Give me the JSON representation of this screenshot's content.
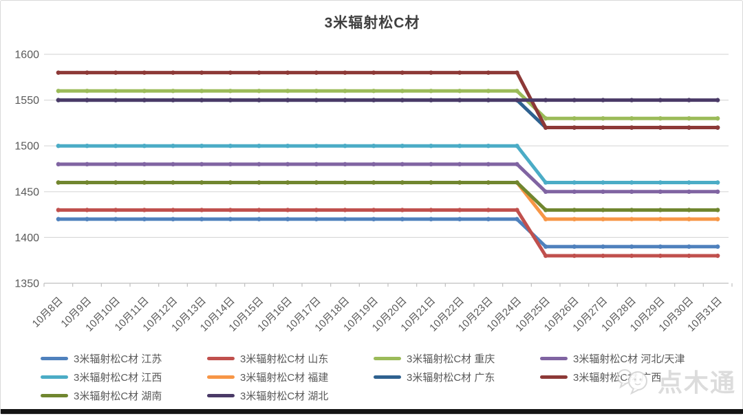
{
  "title": "3米辐射松C材",
  "watermark": {
    "text": "点木通"
  },
  "axis_color": "#bfbfbf",
  "grid_color": "#d9d9d9",
  "label_color": "#595959",
  "chart_data": {
    "type": "line",
    "title": "3米辐射松C材",
    "xlabel": "",
    "ylabel": "",
    "ylim": [
      1350,
      1600
    ],
    "yticks": [
      1350,
      1400,
      1450,
      1500,
      1550,
      1600
    ],
    "grid": true,
    "legend_position": "bottom",
    "categories": [
      "10月8日",
      "10月9日",
      "10月10日",
      "10月11日",
      "10月12日",
      "10月13日",
      "10月14日",
      "10月15日",
      "10月16日",
      "10月17日",
      "10月18日",
      "10月19日",
      "10月20日",
      "10月21日",
      "10月22日",
      "10月23日",
      "10月24日",
      "10月25日",
      "10月26日",
      "10月27日",
      "10月28日",
      "10月29日",
      "10月30日",
      "10月31日"
    ],
    "series": [
      {
        "name": "3米辐射松C材 江苏",
        "region": "江苏",
        "color": "#4F81BD",
        "values": [
          1420,
          1420,
          1420,
          1420,
          1420,
          1420,
          1420,
          1420,
          1420,
          1420,
          1420,
          1420,
          1420,
          1420,
          1420,
          1420,
          1420,
          1390,
          1390,
          1390,
          1390,
          1390,
          1390,
          1390
        ]
      },
      {
        "name": "3米辐射松C材 山东",
        "region": "山东",
        "color": "#C0504D",
        "values": [
          1430,
          1430,
          1430,
          1430,
          1430,
          1430,
          1430,
          1430,
          1430,
          1430,
          1430,
          1430,
          1430,
          1430,
          1430,
          1430,
          1430,
          1380,
          1380,
          1380,
          1380,
          1380,
          1380,
          1380
        ]
      },
      {
        "name": "3米辐射松C材 重庆",
        "region": "重庆",
        "color": "#9BBB59",
        "values": [
          1560,
          1560,
          1560,
          1560,
          1560,
          1560,
          1560,
          1560,
          1560,
          1560,
          1560,
          1560,
          1560,
          1560,
          1560,
          1560,
          1560,
          1530,
          1530,
          1530,
          1530,
          1530,
          1530,
          1530
        ]
      },
      {
        "name": "3米辐射松C材 河北/天津",
        "region": "河北/天津",
        "color": "#8064A2",
        "values": [
          1480,
          1480,
          1480,
          1480,
          1480,
          1480,
          1480,
          1480,
          1480,
          1480,
          1480,
          1480,
          1480,
          1480,
          1480,
          1480,
          1480,
          1450,
          1450,
          1450,
          1450,
          1450,
          1450,
          1450
        ]
      },
      {
        "name": "3米辐射松C材 江西",
        "region": "江西",
        "color": "#4BACC6",
        "values": [
          1500,
          1500,
          1500,
          1500,
          1500,
          1500,
          1500,
          1500,
          1500,
          1500,
          1500,
          1500,
          1500,
          1500,
          1500,
          1500,
          1500,
          1460,
          1460,
          1460,
          1460,
          1460,
          1460,
          1460
        ]
      },
      {
        "name": "3米辐射松C材 福建",
        "region": "福建",
        "color": "#F79646",
        "values": [
          1460,
          1460,
          1460,
          1460,
          1460,
          1460,
          1460,
          1460,
          1460,
          1460,
          1460,
          1460,
          1460,
          1460,
          1460,
          1460,
          1460,
          1420,
          1420,
          1420,
          1420,
          1420,
          1420,
          1420
        ]
      },
      {
        "name": "3米辐射松C材 广东",
        "region": "广东",
        "color": "#2E618F",
        "values": [
          1550,
          1550,
          1550,
          1550,
          1550,
          1550,
          1550,
          1550,
          1550,
          1550,
          1550,
          1550,
          1550,
          1550,
          1550,
          1550,
          1550,
          1520,
          1520,
          1520,
          1520,
          1520,
          1520,
          1520
        ]
      },
      {
        "name": "3米辐射松C材 广西",
        "region": "广西",
        "color": "#8D3937",
        "values": [
          1580,
          1580,
          1580,
          1580,
          1580,
          1580,
          1580,
          1580,
          1580,
          1580,
          1580,
          1580,
          1580,
          1580,
          1580,
          1580,
          1580,
          1520,
          1520,
          1520,
          1520,
          1520,
          1520,
          1520
        ]
      },
      {
        "name": "3米辐射松C材 湖南",
        "region": "湖南",
        "color": "#70862F",
        "values": [
          1460,
          1460,
          1460,
          1460,
          1460,
          1460,
          1460,
          1460,
          1460,
          1460,
          1460,
          1460,
          1460,
          1460,
          1460,
          1460,
          1460,
          1430,
          1430,
          1430,
          1430,
          1430,
          1430,
          1430
        ]
      },
      {
        "name": "3米辐射松C材 湖北",
        "region": "湖北",
        "color": "#4A3A67",
        "values": [
          1550,
          1550,
          1550,
          1550,
          1550,
          1550,
          1550,
          1550,
          1550,
          1550,
          1550,
          1550,
          1550,
          1550,
          1550,
          1550,
          1550,
          1550,
          1550,
          1550,
          1550,
          1550,
          1550,
          1550
        ]
      }
    ]
  }
}
